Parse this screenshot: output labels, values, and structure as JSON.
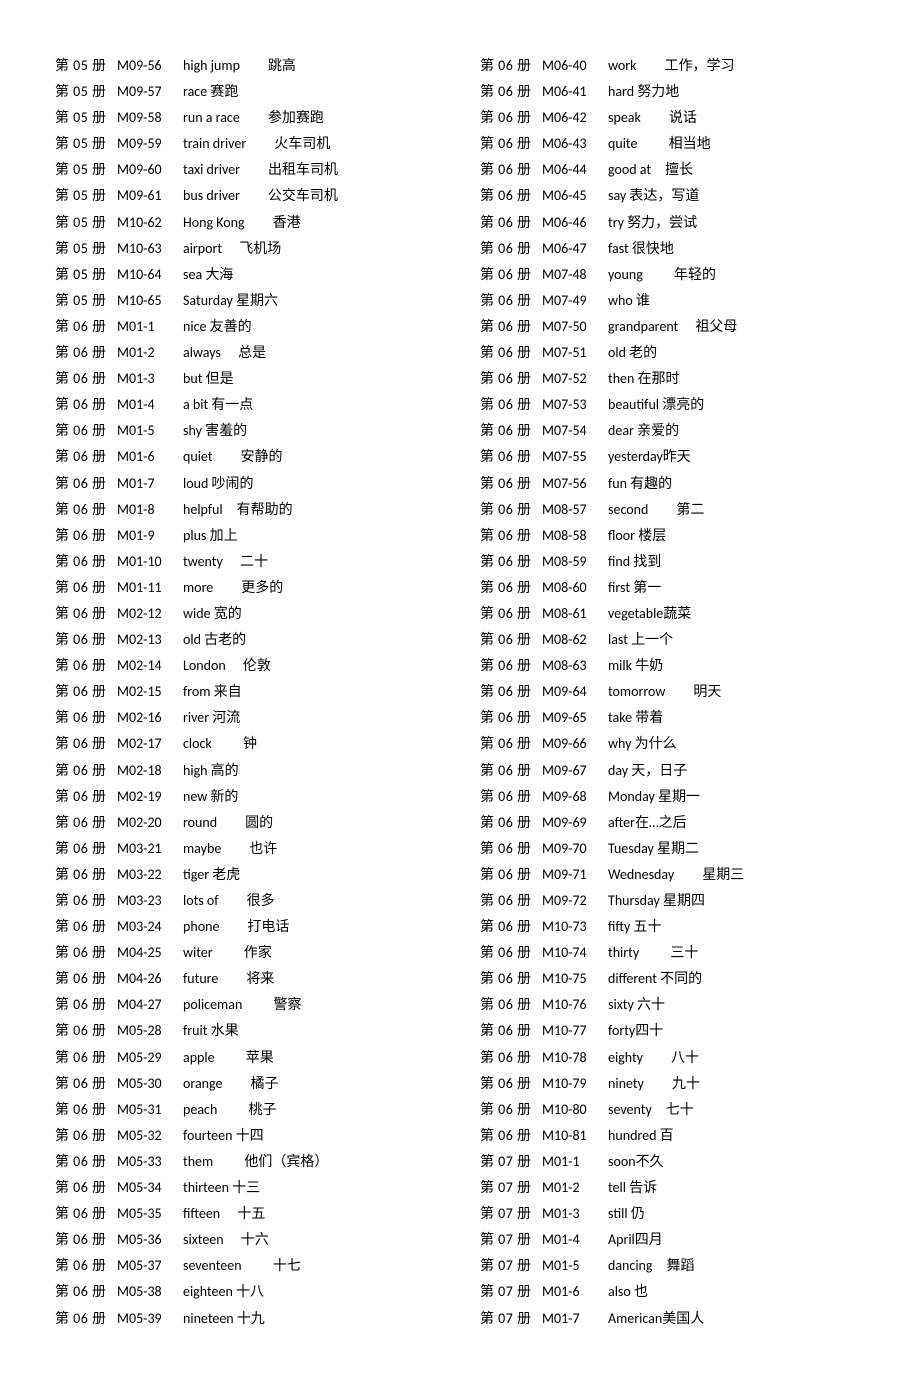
{
  "leftColumn": [
    {
      "book": "第 05 册",
      "code": "M09-56",
      "entry": "high jump　　跳高"
    },
    {
      "book": "第 05 册",
      "code": "M09-57",
      "entry": "race 赛跑"
    },
    {
      "book": "第 05 册",
      "code": "M09-58",
      "entry": "run a race　　参加赛跑"
    },
    {
      "book": "第 05 册",
      "code": "M09-59",
      "entry": "train driver　　火车司机"
    },
    {
      "book": "第 05 册",
      "code": "M09-60",
      "entry": "taxi driver　　出租车司机"
    },
    {
      "book": "第 05 册",
      "code": "M09-61",
      "entry": "bus driver　　公交车司机"
    },
    {
      "book": "第 05 册",
      "code": "M10-62",
      "entry": "Hong Kong　　香港"
    },
    {
      "book": "第 05 册",
      "code": "M10-63",
      "entry": "airport　 飞机场"
    },
    {
      "book": "第 05 册",
      "code": "M10-64",
      "entry": "sea  大海"
    },
    {
      "book": "第 05 册",
      "code": "M10-65",
      "entry": "Saturday 星期六"
    },
    {
      "book": "第 06 册",
      "code": "M01-1",
      "entry": "nice 友善的"
    },
    {
      "book": "第 06 册",
      "code": "M01-2",
      "entry": "always　 总是"
    },
    {
      "book": "第 06 册",
      "code": "M01-3",
      "entry": "but  但是"
    },
    {
      "book": "第 06 册",
      "code": "M01-4",
      "entry": "a bit 有一点"
    },
    {
      "book": "第 06 册",
      "code": "M01-5",
      "entry": "shy  害羞的"
    },
    {
      "book": "第 06 册",
      "code": "M01-6",
      "entry": "quiet　　安静的"
    },
    {
      "book": "第 06 册",
      "code": "M01-7",
      "entry": "loud 吵闹的"
    },
    {
      "book": "第 06 册",
      "code": "M01-8",
      "entry": "helpful　有帮助的"
    },
    {
      "book": "第 06 册",
      "code": "M01-9",
      "entry": "plus 加上"
    },
    {
      "book": "第 06 册",
      "code": "M01-10",
      "entry": "twenty　 二十"
    },
    {
      "book": "第 06 册",
      "code": "M01-11",
      "entry": "more　　更多的"
    },
    {
      "book": "第 06 册",
      "code": "M02-12",
      "entry": "wide 宽的"
    },
    {
      "book": "第 06 册",
      "code": "M02-13",
      "entry": "old  古老的"
    },
    {
      "book": "第 06 册",
      "code": "M02-14",
      "entry": "London　 伦敦"
    },
    {
      "book": "第 06 册",
      "code": "M02-15",
      "entry": "from 来自"
    },
    {
      "book": "第 06 册",
      "code": "M02-16",
      "entry": "river 河流"
    },
    {
      "book": "第 06 册",
      "code": "M02-17",
      "entry": "clock　　 钟"
    },
    {
      "book": "第 06 册",
      "code": "M02-18",
      "entry": "high 高的"
    },
    {
      "book": "第 06 册",
      "code": "M02-19",
      "entry": "new 新的"
    },
    {
      "book": "第 06 册",
      "code": "M02-20",
      "entry": "round　　圆的"
    },
    {
      "book": "第 06 册",
      "code": "M03-21",
      "entry": "maybe　　也许"
    },
    {
      "book": "第 06 册",
      "code": "M03-22",
      "entry": "tiger 老虎"
    },
    {
      "book": "第 06 册",
      "code": "M03-23",
      "entry": "lots of　　很多"
    },
    {
      "book": "第 06 册",
      "code": "M03-24",
      "entry": "phone　　打电话"
    },
    {
      "book": "第 06 册",
      "code": "M04-25",
      "entry": "witer　　 作家"
    },
    {
      "book": "第 06 册",
      "code": "M04-26",
      "entry": "future　　将来"
    },
    {
      "book": "第 06 册",
      "code": "M04-27",
      "entry": "policeman　　 警察"
    },
    {
      "book": "第 06 册",
      "code": "M05-28",
      "entry": "fruit 水果"
    },
    {
      "book": "第 06 册",
      "code": "M05-29",
      "entry": "apple　　 苹果"
    },
    {
      "book": "第 06 册",
      "code": "M05-30",
      "entry": "orange　　橘子"
    },
    {
      "book": "第 06 册",
      "code": "M05-31",
      "entry": "peach　　 桃子"
    },
    {
      "book": "第 06 册",
      "code": "M05-32",
      "entry": "fourteen 十四"
    },
    {
      "book": "第 06 册",
      "code": "M05-33",
      "entry": "them　　 他们（宾格）"
    },
    {
      "book": "第 06 册",
      "code": "M05-34",
      "entry": "thirteen  十三"
    },
    {
      "book": "第 06 册",
      "code": "M05-35",
      "entry": "fifteen　 十五"
    },
    {
      "book": "第 06 册",
      "code": "M05-36",
      "entry": "sixteen　 十六"
    },
    {
      "book": "第 06 册",
      "code": "M05-37",
      "entry": "seventeen　　 十七"
    },
    {
      "book": "第 06 册",
      "code": "M05-38",
      "entry": "eighteen 十八"
    },
    {
      "book": "第 06 册",
      "code": "M05-39",
      "entry": "nineteen 十九"
    }
  ],
  "rightColumn": [
    {
      "book": "第 06 册",
      "code": "M06-40",
      "entry": "work　　工作，学习"
    },
    {
      "book": "第 06 册",
      "code": "M06-41",
      "entry": "hard 努力地"
    },
    {
      "book": "第 06 册",
      "code": "M06-42",
      "entry": "speak　　说话"
    },
    {
      "book": "第 06 册",
      "code": "M06-43",
      "entry": "quite　　 相当地"
    },
    {
      "book": "第 06 册",
      "code": "M06-44",
      "entry": "good at　擅长"
    },
    {
      "book": "第 06 册",
      "code": "M06-45",
      "entry": "say  表达，写道"
    },
    {
      "book": "第 06 册",
      "code": "M06-46",
      "entry": "try  努力，尝试"
    },
    {
      "book": "第 06 册",
      "code": "M06-47",
      "entry": "fast 很快地"
    },
    {
      "book": "第 06 册",
      "code": "M07-48",
      "entry": "young　　 年轻的"
    },
    {
      "book": "第 06 册",
      "code": "M07-49",
      "entry": "who 谁"
    },
    {
      "book": "第 06 册",
      "code": "M07-50",
      "entry": "grandparent　 祖父母"
    },
    {
      "book": "第 06 册",
      "code": "M07-51",
      "entry": "old  老的"
    },
    {
      "book": "第 06 册",
      "code": "M07-52",
      "entry": "then 在那时"
    },
    {
      "book": "第 06 册",
      "code": "M07-53",
      "entry": "beautiful 漂亮的"
    },
    {
      "book": "第 06 册",
      "code": "M07-54",
      "entry": "dear 亲爱的"
    },
    {
      "book": "第 06 册",
      "code": "M07-55",
      "entry": "yesterday昨天"
    },
    {
      "book": "第 06 册",
      "code": "M07-56",
      "entry": "fun  有趣的"
    },
    {
      "book": "第 06 册",
      "code": "M08-57",
      "entry": "second　　第二"
    },
    {
      "book": "第 06 册",
      "code": "M08-58",
      "entry": "floor 楼层"
    },
    {
      "book": "第 06 册",
      "code": "M08-59",
      "entry": "find 找到"
    },
    {
      "book": "第 06 册",
      "code": "M08-60",
      "entry": "first 第一"
    },
    {
      "book": "第 06 册",
      "code": "M08-61",
      "entry": "vegetable蔬菜"
    },
    {
      "book": "第 06 册",
      "code": "M08-62",
      "entry": "last  上一个"
    },
    {
      "book": "第 06 册",
      "code": "M08-63",
      "entry": "milk 牛奶"
    },
    {
      "book": "第 06 册",
      "code": "M09-64",
      "entry": "tomorrow　　明天"
    },
    {
      "book": "第 06 册",
      "code": "M09-65",
      "entry": "take 带着"
    },
    {
      "book": "第 06 册",
      "code": "M09-66",
      "entry": "why 为什么"
    },
    {
      "book": "第 06 册",
      "code": "M09-67",
      "entry": "day  天，日子"
    },
    {
      "book": "第 06 册",
      "code": "M09-68",
      "entry": "Monday  星期一"
    },
    {
      "book": "第 06 册",
      "code": "M09-69",
      "entry": "after在…之后"
    },
    {
      "book": "第 06 册",
      "code": "M09-70",
      "entry": "Tuesday  星期二"
    },
    {
      "book": "第 06 册",
      "code": "M09-71",
      "entry": "Wednesday　　星期三"
    },
    {
      "book": "第 06 册",
      "code": "M09-72",
      "entry": "Thursday 星期四"
    },
    {
      "book": "第 06 册",
      "code": "M10-73",
      "entry": "fifty 五十"
    },
    {
      "book": "第 06 册",
      "code": "M10-74",
      "entry": "thirty　　 三十"
    },
    {
      "book": "第 06 册",
      "code": "M10-75",
      "entry": "different 不同的"
    },
    {
      "book": "第 06 册",
      "code": "M10-76",
      "entry": "sixty 六十"
    },
    {
      "book": "第 06 册",
      "code": "M10-77",
      "entry": "forty四十"
    },
    {
      "book": "第 06 册",
      "code": "M10-78",
      "entry": "eighty　　八十"
    },
    {
      "book": "第 06 册",
      "code": "M10-79",
      "entry": "ninety　　九十"
    },
    {
      "book": "第 06 册",
      "code": "M10-80",
      "entry": "seventy　七十"
    },
    {
      "book": "第 06 册",
      "code": "M10-81",
      "entry": "hundred  百"
    },
    {
      "book": "第 07 册",
      "code": "M01-1",
      "entry": "soon不久"
    },
    {
      "book": "第 07 册",
      "code": "M01-2",
      "entry": "tell  告诉"
    },
    {
      "book": "第 07 册",
      "code": "M01-3",
      "entry": "still  仍"
    },
    {
      "book": "第 07 册",
      "code": "M01-4",
      "entry": "April四月"
    },
    {
      "book": "第 07 册",
      "code": "M01-5",
      "entry": "dancing　舞蹈"
    },
    {
      "book": "第 07 册",
      "code": "M01-6",
      "entry": "also 也"
    },
    {
      "book": "第 07 册",
      "code": "M01-7",
      "entry": "American美国人"
    }
  ]
}
